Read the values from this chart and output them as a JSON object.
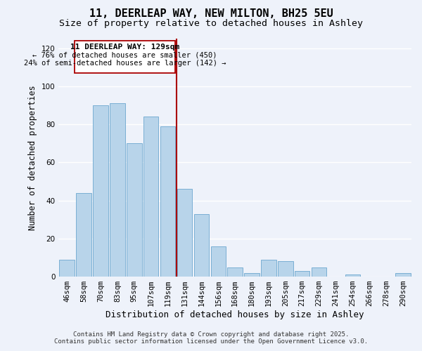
{
  "title": "11, DEERLEAP WAY, NEW MILTON, BH25 5EU",
  "subtitle": "Size of property relative to detached houses in Ashley",
  "xlabel": "Distribution of detached houses by size in Ashley",
  "ylabel": "Number of detached properties",
  "bar_labels": [
    "46sqm",
    "58sqm",
    "70sqm",
    "83sqm",
    "95sqm",
    "107sqm",
    "119sqm",
    "131sqm",
    "144sqm",
    "156sqm",
    "168sqm",
    "180sqm",
    "193sqm",
    "205sqm",
    "217sqm",
    "229sqm",
    "241sqm",
    "254sqm",
    "266sqm",
    "278sqm",
    "290sqm"
  ],
  "bar_heights": [
    9,
    44,
    90,
    91,
    70,
    84,
    79,
    46,
    33,
    16,
    5,
    2,
    9,
    8,
    3,
    5,
    0,
    1,
    0,
    0,
    2
  ],
  "bar_color": "#b8d4ea",
  "bar_edge_color": "#7aafd4",
  "marker_label": "11 DEERLEAP WAY: 129sqm",
  "annotation_line1": "← 76% of detached houses are smaller (450)",
  "annotation_line2": "24% of semi-detached houses are larger (142) →",
  "marker_color": "#aa0000",
  "ylim": [
    0,
    125
  ],
  "yticks": [
    0,
    20,
    40,
    60,
    80,
    100,
    120
  ],
  "footnote1": "Contains HM Land Registry data © Crown copyright and database right 2025.",
  "footnote2": "Contains public sector information licensed under the Open Government Licence v3.0.",
  "background_color": "#eef2fa",
  "grid_color": "#ffffff",
  "title_fontsize": 11,
  "subtitle_fontsize": 9.5,
  "xlabel_fontsize": 9,
  "ylabel_fontsize": 8.5,
  "tick_fontsize": 7.5,
  "annotation_fontsize": 8,
  "footnote_fontsize": 6.5
}
